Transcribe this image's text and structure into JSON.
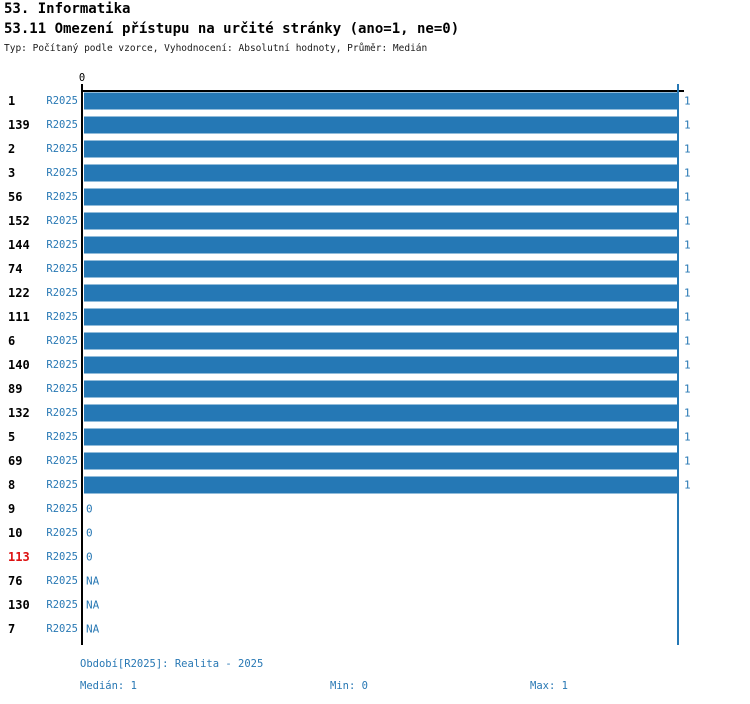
{
  "header": {
    "title": "53. Informatika",
    "subtitle": "53.11 Omezení přístupu na určité stránky (ano=1, ne=0)",
    "meta": "Typ: Počítaný podle vzorce, Vyhodnocení: Absolutní hodnoty, Průměr: Medián"
  },
  "chart_data": {
    "type": "bar",
    "orientation": "horizontal",
    "title": "53.11 Omezení přístupu na určité stránky (ano=1, ne=0)",
    "xlim": [
      0,
      1
    ],
    "top_tick_label": "0",
    "period": "R2025",
    "rows": [
      {
        "id": "1",
        "period": "R2025",
        "value": 1
      },
      {
        "id": "139",
        "period": "R2025",
        "value": 1
      },
      {
        "id": "2",
        "period": "R2025",
        "value": 1
      },
      {
        "id": "3",
        "period": "R2025",
        "value": 1
      },
      {
        "id": "56",
        "period": "R2025",
        "value": 1
      },
      {
        "id": "152",
        "period": "R2025",
        "value": 1
      },
      {
        "id": "144",
        "period": "R2025",
        "value": 1
      },
      {
        "id": "74",
        "period": "R2025",
        "value": 1
      },
      {
        "id": "122",
        "period": "R2025",
        "value": 1
      },
      {
        "id": "111",
        "period": "R2025",
        "value": 1
      },
      {
        "id": "6",
        "period": "R2025",
        "value": 1
      },
      {
        "id": "140",
        "period": "R2025",
        "value": 1
      },
      {
        "id": "89",
        "period": "R2025",
        "value": 1
      },
      {
        "id": "132",
        "period": "R2025",
        "value": 1
      },
      {
        "id": "5",
        "period": "R2025",
        "value": 1
      },
      {
        "id": "69",
        "period": "R2025",
        "value": 1
      },
      {
        "id": "8",
        "period": "R2025",
        "value": 1
      },
      {
        "id": "9",
        "period": "R2025",
        "value": 0
      },
      {
        "id": "10",
        "period": "R2025",
        "value": 0
      },
      {
        "id": "113",
        "period": "R2025",
        "value": 0,
        "highlight": true
      },
      {
        "id": "76",
        "period": "R2025",
        "value": "NA"
      },
      {
        "id": "130",
        "period": "R2025",
        "value": "NA"
      },
      {
        "id": "7",
        "period": "R2025",
        "value": "NA"
      }
    ],
    "summary": {
      "median": 1,
      "min": 0,
      "max": 1
    },
    "footer": {
      "period_line": "Období[R2025]: Realita - 2025",
      "median_label": "Medián: 1",
      "min_label": "Min: 0",
      "max_label": "Max: 1"
    },
    "colors": {
      "bar": "#2578b5",
      "blue_text": "#2878b4",
      "highlight_red": "#dd1111",
      "axis_black": "#000000"
    }
  }
}
